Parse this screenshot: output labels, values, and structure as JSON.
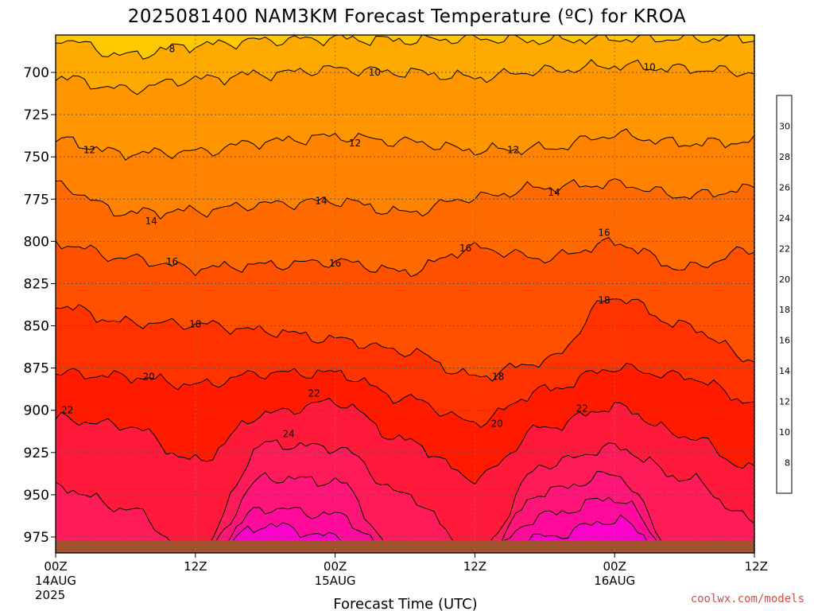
{
  "chart_data": {
    "type": "heatmap",
    "title": "2025081400 NAM3KM Forecast Temperature (ºC) for KROA",
    "xlabel": "Forecast Time (UTC)",
    "x_ticks": [
      {
        "hours": 0,
        "lines": [
          "00Z",
          "14AUG",
          "2025"
        ]
      },
      {
        "hours": 12,
        "lines": [
          "12Z"
        ]
      },
      {
        "hours": 24,
        "lines": [
          "00Z",
          "15AUG"
        ]
      },
      {
        "hours": 36,
        "lines": [
          "12Z"
        ]
      },
      {
        "hours": 48,
        "lines": [
          "00Z",
          "16AUG"
        ]
      },
      {
        "hours": 60,
        "lines": [
          "12Z"
        ]
      }
    ],
    "xlim_hours": [
      0,
      60
    ],
    "y_ticks": [
      700,
      725,
      750,
      775,
      800,
      825,
      850,
      875,
      900,
      925,
      950,
      975
    ],
    "ylim_hpa": [
      681,
      985
    ],
    "ground_level_hpa": 977,
    "colorbar": {
      "levels": [
        6,
        8,
        10,
        12,
        14,
        16,
        18,
        20,
        22,
        24,
        26,
        28,
        30,
        32
      ],
      "tick_labels": [
        8,
        10,
        12,
        14,
        16,
        18,
        20,
        22,
        24,
        26,
        28,
        30
      ],
      "colors": [
        "#ffc800",
        "#ffaa00",
        "#ff9600",
        "#ff8200",
        "#ff6a00",
        "#ff5000",
        "#ff3200",
        "#ff1a00",
        "#ff1a3c",
        "#ff1a5a",
        "#ff1478",
        "#ff0a9a",
        "#ff00cc"
      ]
    },
    "isotherm_profiles": [
      {
        "value": 8,
        "pressures": [
          [
            0,
            680
          ],
          [
            6,
            690
          ],
          [
            12,
            684
          ],
          [
            18,
            681
          ],
          [
            24,
            680
          ],
          [
            30,
            681
          ],
          [
            36,
            680
          ],
          [
            42,
            681
          ],
          [
            48,
            680
          ],
          [
            54,
            680
          ],
          [
            60,
            680
          ]
        ]
      },
      {
        "value": 10,
        "pressures": [
          [
            0,
            703
          ],
          [
            6,
            710
          ],
          [
            12,
            704
          ],
          [
            18,
            701
          ],
          [
            24,
            698
          ],
          [
            30,
            700
          ],
          [
            36,
            703
          ],
          [
            42,
            699
          ],
          [
            48,
            696
          ],
          [
            54,
            698
          ],
          [
            60,
            700
          ]
        ]
      },
      {
        "value": 12,
        "pressures": [
          [
            0,
            740
          ],
          [
            6,
            748
          ],
          [
            12,
            747
          ],
          [
            18,
            741
          ],
          [
            24,
            738
          ],
          [
            30,
            741
          ],
          [
            36,
            746
          ],
          [
            42,
            745
          ],
          [
            48,
            737
          ],
          [
            54,
            742
          ],
          [
            60,
            741
          ]
        ]
      },
      {
        "value": 14,
        "pressures": [
          [
            0,
            767
          ],
          [
            6,
            783
          ],
          [
            12,
            782
          ],
          [
            18,
            778
          ],
          [
            24,
            776
          ],
          [
            30,
            783
          ],
          [
            36,
            774
          ],
          [
            42,
            768
          ],
          [
            48,
            766
          ],
          [
            54,
            773
          ],
          [
            60,
            769
          ]
        ]
      },
      {
        "value": 16,
        "pressures": [
          [
            0,
            801
          ],
          [
            6,
            810
          ],
          [
            12,
            816
          ],
          [
            18,
            814
          ],
          [
            24,
            812
          ],
          [
            30,
            818
          ],
          [
            36,
            804
          ],
          [
            42,
            810
          ],
          [
            48,
            801
          ],
          [
            54,
            816
          ],
          [
            60,
            805
          ]
        ]
      },
      {
        "value": 18,
        "pressures": [
          [
            0,
            838
          ],
          [
            6,
            848
          ],
          [
            12,
            849
          ],
          [
            18,
            853
          ],
          [
            24,
            858
          ],
          [
            30,
            865
          ],
          [
            36,
            880
          ],
          [
            42,
            871
          ],
          [
            48,
            833
          ],
          [
            54,
            850
          ],
          [
            60,
            870
          ]
        ]
      },
      {
        "value": 20,
        "pressures": [
          [
            0,
            878
          ],
          [
            6,
            880
          ],
          [
            12,
            885
          ],
          [
            18,
            878
          ],
          [
            24,
            878
          ],
          [
            30,
            893
          ],
          [
            36,
            907
          ],
          [
            42,
            888
          ],
          [
            48,
            875
          ],
          [
            54,
            880
          ],
          [
            60,
            895
          ]
        ]
      },
      {
        "value": 22,
        "pressures": [
          [
            0,
            905
          ],
          [
            6,
            909
          ],
          [
            12,
            930
          ],
          [
            18,
            902
          ],
          [
            24,
            895
          ],
          [
            30,
            918
          ],
          [
            36,
            940
          ],
          [
            42,
            910
          ],
          [
            48,
            898
          ],
          [
            54,
            915
          ],
          [
            60,
            935
          ]
        ]
      },
      {
        "value": 24,
        "pressures": [
          [
            0,
            945
          ],
          [
            6,
            958
          ],
          [
            12,
            985
          ],
          [
            18,
            920
          ],
          [
            24,
            922
          ],
          [
            30,
            950
          ],
          [
            36,
            985
          ],
          [
            42,
            932
          ],
          [
            48,
            922
          ],
          [
            54,
            940
          ],
          [
            60,
            965
          ]
        ]
      },
      {
        "value": 26,
        "pressures": [
          [
            0,
            990
          ],
          [
            6,
            990
          ],
          [
            12,
            990
          ],
          [
            18,
            940
          ],
          [
            24,
            942
          ],
          [
            30,
            990
          ],
          [
            36,
            990
          ],
          [
            42,
            948
          ],
          [
            48,
            938
          ],
          [
            54,
            990
          ],
          [
            60,
            990
          ]
        ]
      },
      {
        "value": 28,
        "pressures": [
          [
            0,
            990
          ],
          [
            6,
            990
          ],
          [
            12,
            990
          ],
          [
            18,
            958
          ],
          [
            24,
            962
          ],
          [
            30,
            990
          ],
          [
            36,
            990
          ],
          [
            42,
            962
          ],
          [
            48,
            952
          ],
          [
            54,
            990
          ],
          [
            60,
            990
          ]
        ]
      },
      {
        "value": 30,
        "pressures": [
          [
            0,
            990
          ],
          [
            6,
            990
          ],
          [
            12,
            990
          ],
          [
            18,
            968
          ],
          [
            24,
            975
          ],
          [
            30,
            990
          ],
          [
            36,
            990
          ],
          [
            42,
            975
          ],
          [
            48,
            965
          ],
          [
            54,
            990
          ],
          [
            60,
            990
          ]
        ]
      }
    ],
    "contour_labels": [
      {
        "text": "8",
        "hours": 10.0,
        "hpa": 686
      },
      {
        "text": "10",
        "hours": 27.4,
        "hpa": 700
      },
      {
        "text": "10",
        "hours": 51.0,
        "hpa": 697
      },
      {
        "text": "12",
        "hours": 2.9,
        "hpa": 746
      },
      {
        "text": "12",
        "hours": 25.7,
        "hpa": 742
      },
      {
        "text": "12",
        "hours": 39.3,
        "hpa": 746
      },
      {
        "text": "14",
        "hours": 8.2,
        "hpa": 788
      },
      {
        "text": "14",
        "hours": 22.8,
        "hpa": 776
      },
      {
        "text": "14",
        "hours": 42.8,
        "hpa": 771
      },
      {
        "text": "16",
        "hours": 10.0,
        "hpa": 812
      },
      {
        "text": "16",
        "hours": 24.0,
        "hpa": 813
      },
      {
        "text": "16",
        "hours": 35.2,
        "hpa": 804
      },
      {
        "text": "16",
        "hours": 47.1,
        "hpa": 795
      },
      {
        "text": "18",
        "hours": 12.0,
        "hpa": 849
      },
      {
        "text": "18",
        "hours": 38.0,
        "hpa": 880
      },
      {
        "text": "18",
        "hours": 47.1,
        "hpa": 835
      },
      {
        "text": "20",
        "hours": 8.0,
        "hpa": 880
      },
      {
        "text": "20",
        "hours": 37.9,
        "hpa": 908
      },
      {
        "text": "22",
        "hours": 1.0,
        "hpa": 900
      },
      {
        "text": "22",
        "hours": 22.2,
        "hpa": 890
      },
      {
        "text": "22",
        "hours": 45.2,
        "hpa": 899
      },
      {
        "text": "24",
        "hours": 20.0,
        "hpa": 914
      }
    ]
  },
  "credit": "coolwx.com/models"
}
